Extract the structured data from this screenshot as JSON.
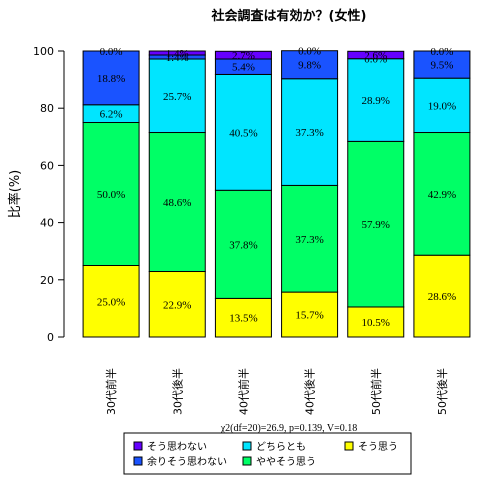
{
  "chart_data": {
    "type": "bar",
    "title": "社会調査は有効か？(女性)",
    "xlabel": "",
    "ylabel": "比率(%)",
    "ylim": [
      0,
      100
    ],
    "yticks": [
      "0",
      "20",
      "40",
      "60",
      "80",
      "100"
    ],
    "categories": [
      "30代前半",
      "30代後半",
      "40代前半",
      "40代後半",
      "50代前半",
      "50代後半"
    ],
    "series": [
      {
        "name": "そう思う",
        "color": "#ffff00",
        "values": [
          25.0,
          22.9,
          13.5,
          15.7,
          10.5,
          28.6
        ],
        "labels": [
          "25.0%",
          "22.9%",
          "13.5%",
          "15.7%",
          "10.5%",
          "28.6%"
        ]
      },
      {
        "name": "ややそう思う",
        "color": "#00ff66",
        "values": [
          50.0,
          48.6,
          37.8,
          37.3,
          57.9,
          42.9
        ],
        "labels": [
          "50.0%",
          "48.6%",
          "37.8%",
          "37.3%",
          "57.9%",
          "42.9%"
        ]
      },
      {
        "name": "どちらとも",
        "color": "#00e5ff",
        "values": [
          6.2,
          25.7,
          40.5,
          37.3,
          28.9,
          19.0
        ],
        "labels": [
          "6.2%",
          "25.7%",
          "40.5%",
          "37.3%",
          "28.9%",
          "19.0%"
        ]
      },
      {
        "name": "余りそう思わない",
        "color": "#1a53ff",
        "values": [
          18.8,
          1.4,
          5.4,
          9.8,
          0.0,
          9.5
        ],
        "labels": [
          "18.8%",
          "1.4%",
          "5.4%",
          "9.8%",
          "0.0%",
          "9.5%"
        ]
      },
      {
        "name": "そう思わない",
        "color": "#6600ff",
        "values": [
          0.0,
          1.4,
          2.7,
          0.0,
          2.6,
          0.0
        ],
        "labels": [
          "0.0%",
          "1.4%",
          "2.7%",
          "0.0%",
          "2.6%",
          "0.0%"
        ]
      }
    ],
    "stat_text": "χ2(df=20)=26.9, p=0.139, V=0.18",
    "legend_position": "bottom"
  }
}
